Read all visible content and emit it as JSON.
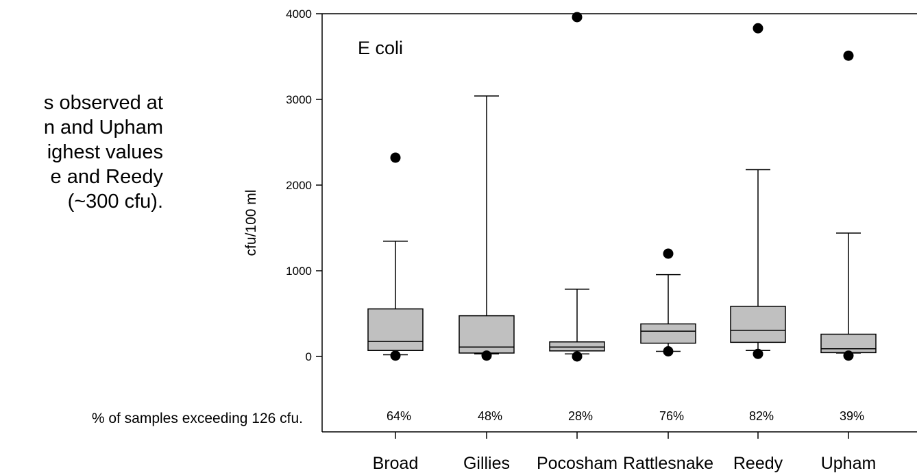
{
  "side_text": {
    "lines": [
      "s observed at",
      "n and Upham",
      "ighest values",
      "e and Reedy",
      "(~300 cfu)."
    ]
  },
  "note": "% of samples exceeding 126 cfu.",
  "chart_data": {
    "type": "box",
    "title": "E coli",
    "ylabel": "cfu/100 ml",
    "xlabel": "",
    "ylim": [
      -850,
      4000
    ],
    "yticks": [
      0,
      1000,
      2000,
      3000,
      4000
    ],
    "grid": false,
    "categories": [
      "Broad",
      "Gillies",
      "Pocosham",
      "Rattlesnake",
      "Reedy",
      "Upham"
    ],
    "boxes": [
      {
        "category": "Broad",
        "whisker_low": 20,
        "q1": 70,
        "median": 175,
        "q3": 555,
        "whisker_high": 1345,
        "outliers": [
          2320,
          10
        ]
      },
      {
        "category": "Gillies",
        "whisker_low": 30,
        "q1": 40,
        "median": 110,
        "q3": 475,
        "whisker_high": 3040,
        "outliers": [
          10
        ]
      },
      {
        "category": "Pocosham",
        "whisker_low": 30,
        "q1": 65,
        "median": 110,
        "q3": 170,
        "whisker_high": 785,
        "outliers": [
          3960,
          0
        ]
      },
      {
        "category": "Rattlesnake",
        "whisker_low": 60,
        "q1": 155,
        "median": 295,
        "q3": 380,
        "whisker_high": 955,
        "outliers": [
          1200,
          60
        ]
      },
      {
        "category": "Reedy",
        "whisker_low": 70,
        "q1": 165,
        "median": 305,
        "q3": 585,
        "whisker_high": 2180,
        "outliers": [
          3830,
          30
        ]
      },
      {
        "category": "Upham",
        "whisker_low": 40,
        "q1": 45,
        "median": 90,
        "q3": 260,
        "whisker_high": 1440,
        "outliers": [
          3510,
          10
        ]
      }
    ],
    "percent_labels": [
      "64%",
      "48%",
      "28%",
      "76%",
      "82%",
      "39%"
    ],
    "colors": {
      "box_fill": "#c0c0c0",
      "stroke": "#000000"
    }
  }
}
